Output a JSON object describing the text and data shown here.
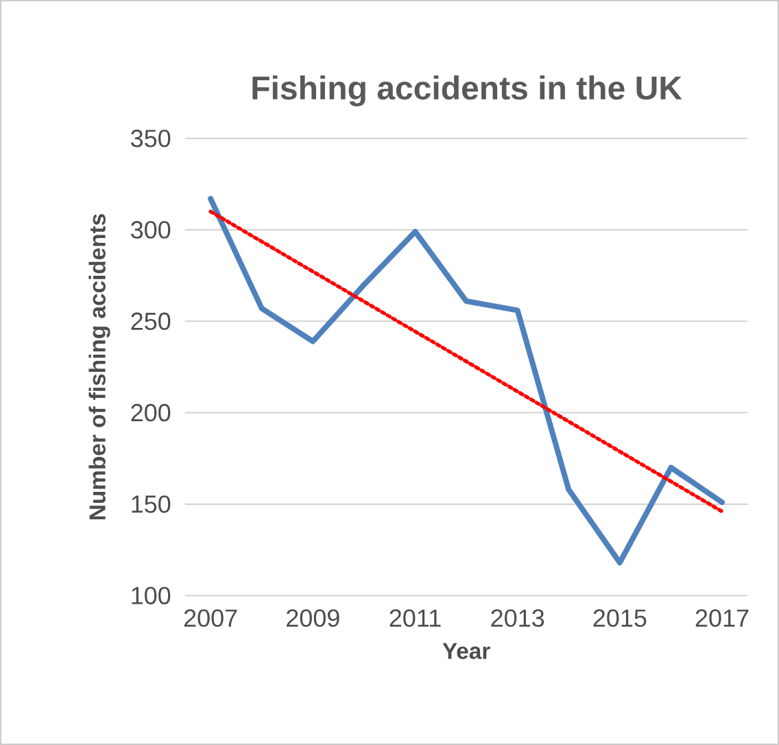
{
  "chart_data": {
    "type": "line",
    "title": "Fishing accidents in the UK",
    "xlabel": "Year",
    "ylabel": "Number of fishing accidents",
    "x": [
      2007,
      2008,
      2009,
      2010,
      2011,
      2012,
      2013,
      2014,
      2015,
      2016,
      2017
    ],
    "series": [
      {
        "color": "#4f81bd",
        "values": [
          317,
          257,
          239,
          270,
          299,
          261,
          256,
          158,
          118,
          170,
          151
        ]
      },
      {
        "type": "line",
        "color": "#ff0000",
        "line_style": "dotted",
        "x": [
          2007,
          2017
        ],
        "values": [
          310,
          146
        ]
      }
    ],
    "xlim": [
      2006.5,
      2017.5
    ],
    "ylim": [
      100,
      350
    ],
    "xticks": [
      2007,
      2009,
      2011,
      2013,
      2015,
      2017
    ],
    "yticks": [
      100,
      150,
      200,
      250,
      300,
      350
    ],
    "grid": "y"
  }
}
